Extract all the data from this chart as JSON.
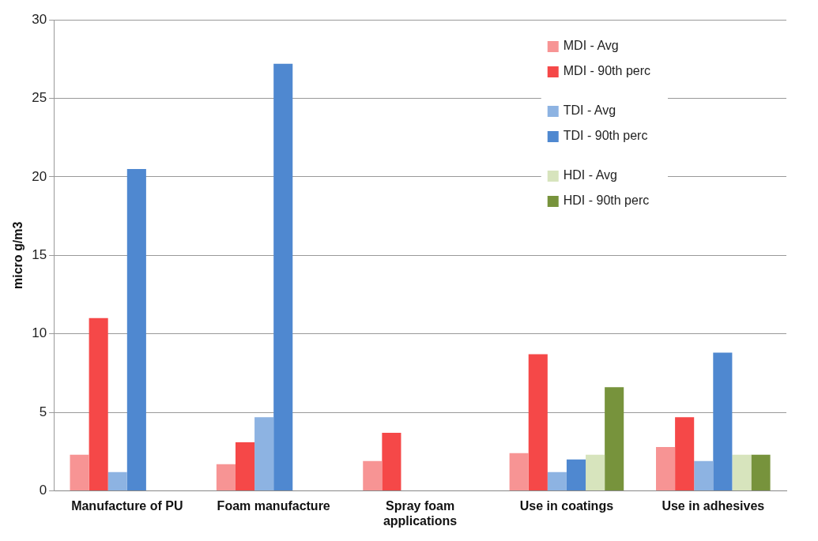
{
  "chart_data": {
    "type": "bar",
    "ylabel": "micro g/m3",
    "categories": [
      "Manufacture of PU",
      "Foam manufacture",
      "Spray foam applications",
      "Use in coatings",
      "Use in adhesives"
    ],
    "series": [
      {
        "name": "MDI - Avg",
        "color": "#f79494",
        "values": [
          2.3,
          1.7,
          1.9,
          2.4,
          2.8
        ]
      },
      {
        "name": "MDI - 90th perc",
        "color": "#f54848",
        "values": [
          11.0,
          3.1,
          3.7,
          8.7,
          4.7
        ]
      },
      {
        "name": "TDI - Avg",
        "color": "#8db3e2",
        "values": [
          1.2,
          4.7,
          null,
          1.2,
          1.9
        ]
      },
      {
        "name": "TDI - 90th perc",
        "color": "#4f88d0",
        "values": [
          20.5,
          27.2,
          null,
          2.0,
          8.8
        ]
      },
      {
        "name": "HDI - Avg",
        "color": "#d7e4bd",
        "values": [
          null,
          null,
          null,
          2.3,
          2.3
        ]
      },
      {
        "name": "HDI - 90th perc",
        "color": "#77933c",
        "values": [
          null,
          null,
          null,
          6.6,
          2.3
        ]
      }
    ],
    "ylim": [
      0,
      30
    ],
    "yticks": [
      0,
      5,
      10,
      15,
      20,
      25,
      30
    ],
    "grid": "y",
    "legend": "top right"
  }
}
